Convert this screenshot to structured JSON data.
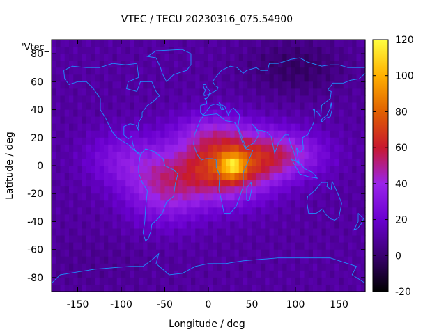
{
  "chart_data": {
    "type": "heatmap",
    "title": "VTEC / TECU 20230316_075.54900",
    "xlabel": "Longitude / deg",
    "ylabel": "Latitude / deg",
    "xlim": [
      -180,
      180
    ],
    "ylim": [
      -90,
      90
    ],
    "xticks": [
      -150,
      -100,
      -50,
      0,
      50,
      100,
      150
    ],
    "yticks": [
      -80,
      -60,
      -40,
      -20,
      0,
      20,
      40,
      60,
      80
    ],
    "overlay_label": "'Vtec_",
    "colorbar": {
      "range": [
        -20,
        120
      ],
      "ticks": [
        -20,
        0,
        20,
        40,
        60,
        80,
        100,
        120
      ],
      "colormap": [
        "#000000",
        "#3a0070",
        "#6a00d0",
        "#9a24ea",
        "#c8182e",
        "#e06000",
        "#ffb000",
        "#ffff40"
      ]
    },
    "field_description": "Enhanced VTEC band centered near longitude 20, latitude 0 with peak about 115 TECU; low values near 5 TECU at high latitudes",
    "peak": {
      "lon": 25,
      "lat": 0,
      "value": 115
    },
    "coastline_color": "#1e90ff"
  }
}
